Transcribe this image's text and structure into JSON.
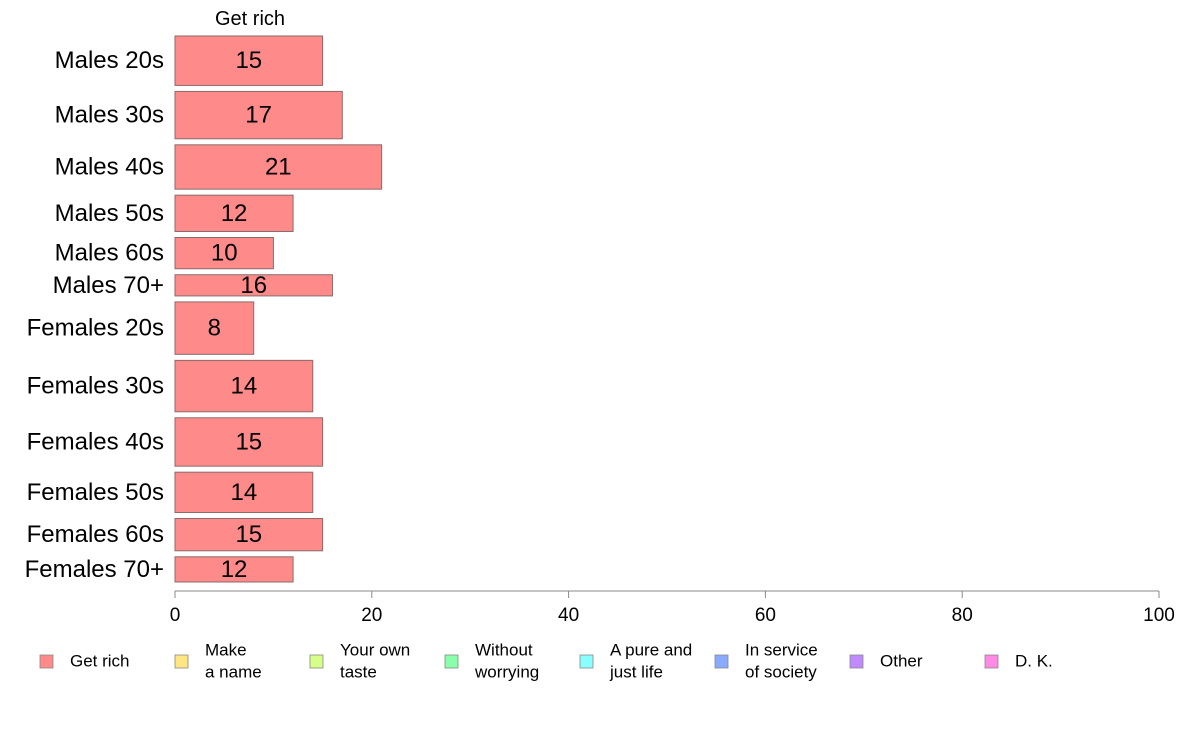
{
  "chart_data": {
    "type": "bar",
    "orientation": "horizontal",
    "title": "Get rich",
    "categories": [
      "Males 20s",
      "Males 30s",
      "Males 40s",
      "Males 50s",
      "Males 60s",
      "Males 70+",
      "Females 20s",
      "Females 30s",
      "Females 40s",
      "Females 50s",
      "Females 60s",
      "Females 70+"
    ],
    "values": [
      15,
      17,
      21,
      12,
      10,
      16,
      8,
      14,
      15,
      14,
      15,
      12
    ],
    "bar_weights": [
      49,
      47,
      44,
      36,
      31,
      21,
      52,
      51,
      48,
      40,
      32,
      25
    ],
    "xlim": [
      0,
      100
    ],
    "xticks": [
      0,
      20,
      40,
      60,
      80,
      100
    ],
    "bar_color": "#ff8a8a",
    "bar_edge_color": "#8a6a6a",
    "legend": [
      {
        "lines": [
          "Get rich"
        ],
        "color": "#ff8a8a"
      },
      {
        "lines": [
          "Make",
          "a name"
        ],
        "color": "#ffe680"
      },
      {
        "lines": [
          "Your own",
          "taste"
        ],
        "color": "#d6ff8a"
      },
      {
        "lines": [
          "Without",
          "worrying"
        ],
        "color": "#8affaa"
      },
      {
        "lines": [
          "A pure and",
          "just life"
        ],
        "color": "#8affff"
      },
      {
        "lines": [
          "In service",
          "of society"
        ],
        "color": "#8aaaff"
      },
      {
        "lines": [
          "Other"
        ],
        "color": "#c08aff"
      },
      {
        "lines": [
          "D. K."
        ],
        "color": "#ff8ae6"
      }
    ],
    "legend_position": "bottom",
    "grid": false
  }
}
